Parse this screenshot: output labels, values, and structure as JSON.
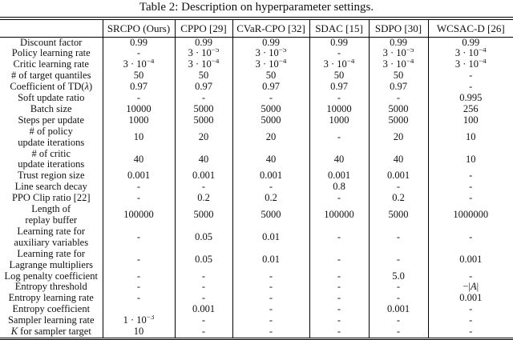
{
  "caption": "Table 2: Description on hyperparameter settings.",
  "table": {
    "columns": [
      "",
      "SRCPO (Ours)",
      "CPPO [29]",
      "CVaR-CPO [32]",
      "SDAC [15]",
      "SDPO [30]",
      "WCSAC-D [26]"
    ],
    "rows": [
      {
        "label": "Discount factor",
        "values": [
          "0.99",
          "0.99",
          "0.99",
          "0.99",
          "0.99",
          "0.99"
        ]
      },
      {
        "label": "Policy learning rate",
        "values": [
          "-",
          "3 · 10^−5",
          "3 · 10^−5",
          "-",
          "3 · 10^−5",
          "3 · 10^−4"
        ]
      },
      {
        "label": "Critic learning rate",
        "values": [
          "3 · 10^−4",
          "3 · 10^−4",
          "3 · 10^−4",
          "3 · 10^−4",
          "3 · 10^−4",
          "3 · 10^−4"
        ]
      },
      {
        "label": "# of target quantiles",
        "values": [
          "50",
          "50",
          "50",
          "50",
          "50",
          "-"
        ]
      },
      {
        "label": "Coefficient of TD(*λ*)",
        "values": [
          "0.97",
          "0.97",
          "0.97",
          "0.97",
          "0.97",
          "-"
        ]
      },
      {
        "label": "Soft update ratio",
        "values": [
          "-",
          "-",
          "-",
          "-",
          "-",
          "0.995"
        ]
      },
      {
        "label": "Batch size",
        "values": [
          "10000",
          "5000",
          "5000",
          "10000",
          "5000",
          "256"
        ]
      },
      {
        "label": "Steps per update",
        "values": [
          "1000",
          "5000",
          "5000",
          "1000",
          "5000",
          "100"
        ]
      },
      {
        "label": "# of policy\nupdate iterations",
        "values": [
          "10",
          "20",
          "20",
          "-",
          "20",
          "10"
        ]
      },
      {
        "label": "# of critic\nupdate iterations",
        "values": [
          "40",
          "40",
          "40",
          "40",
          "40",
          "10"
        ]
      },
      {
        "label": "Trust region size",
        "values": [
          "0.001",
          "0.001",
          "0.001",
          "0.001",
          "0.001",
          "-"
        ]
      },
      {
        "label": "Line search decay",
        "values": [
          "-",
          "-",
          "-",
          "0.8",
          "-",
          "-"
        ]
      },
      {
        "label": "PPO Clip ratio [22]",
        "values": [
          "-",
          "0.2",
          "0.2",
          "-",
          "0.2",
          "-"
        ]
      },
      {
        "label": "Length of\nreplay buffer",
        "values": [
          "100000",
          "5000",
          "5000",
          "100000",
          "5000",
          "1000000"
        ]
      },
      {
        "label": "Learning rate for\nauxiliary variables",
        "values": [
          "-",
          "0.05",
          "0.01",
          "-",
          "-",
          "-"
        ]
      },
      {
        "label": "Learning rate for\nLagrange multipliers",
        "values": [
          "-",
          "0.05",
          "0.01",
          "-",
          "-",
          "0.001"
        ]
      },
      {
        "label": "Log penalty coefficient",
        "values": [
          "-",
          "-",
          "-",
          "-",
          "5.0",
          "-"
        ]
      },
      {
        "label": "Entropy threshold",
        "values": [
          "-",
          "-",
          "-",
          "-",
          "-",
          "−|*A*|"
        ]
      },
      {
        "label": "Entropy learning rate",
        "values": [
          "-",
          "-",
          "-",
          "-",
          "-",
          "0.001"
        ]
      },
      {
        "label": "Entropy coefficient",
        "values": [
          "",
          "0.001",
          "-",
          "-",
          "0.001",
          "-"
        ]
      },
      {
        "label": "Sampler learning rate",
        "values": [
          "1 · 10^−3",
          "-",
          "-",
          "-",
          "-",
          "-"
        ]
      },
      {
        "label": "*K* for sampler target",
        "values": [
          "10",
          "-",
          "-",
          "-",
          "-",
          "-"
        ]
      }
    ]
  }
}
